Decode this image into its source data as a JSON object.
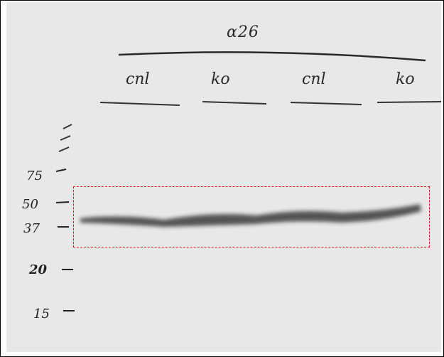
{
  "blot": {
    "antibody_label": "α26",
    "lanes": [
      "cnl",
      "ko",
      "cnl",
      "ko"
    ],
    "markers": [
      "75",
      "50",
      "37",
      "20",
      "15"
    ]
  },
  "colors": {
    "film": "#e8e8e8",
    "ink": "#2a2a2a",
    "selection_box": "#e01010"
  }
}
